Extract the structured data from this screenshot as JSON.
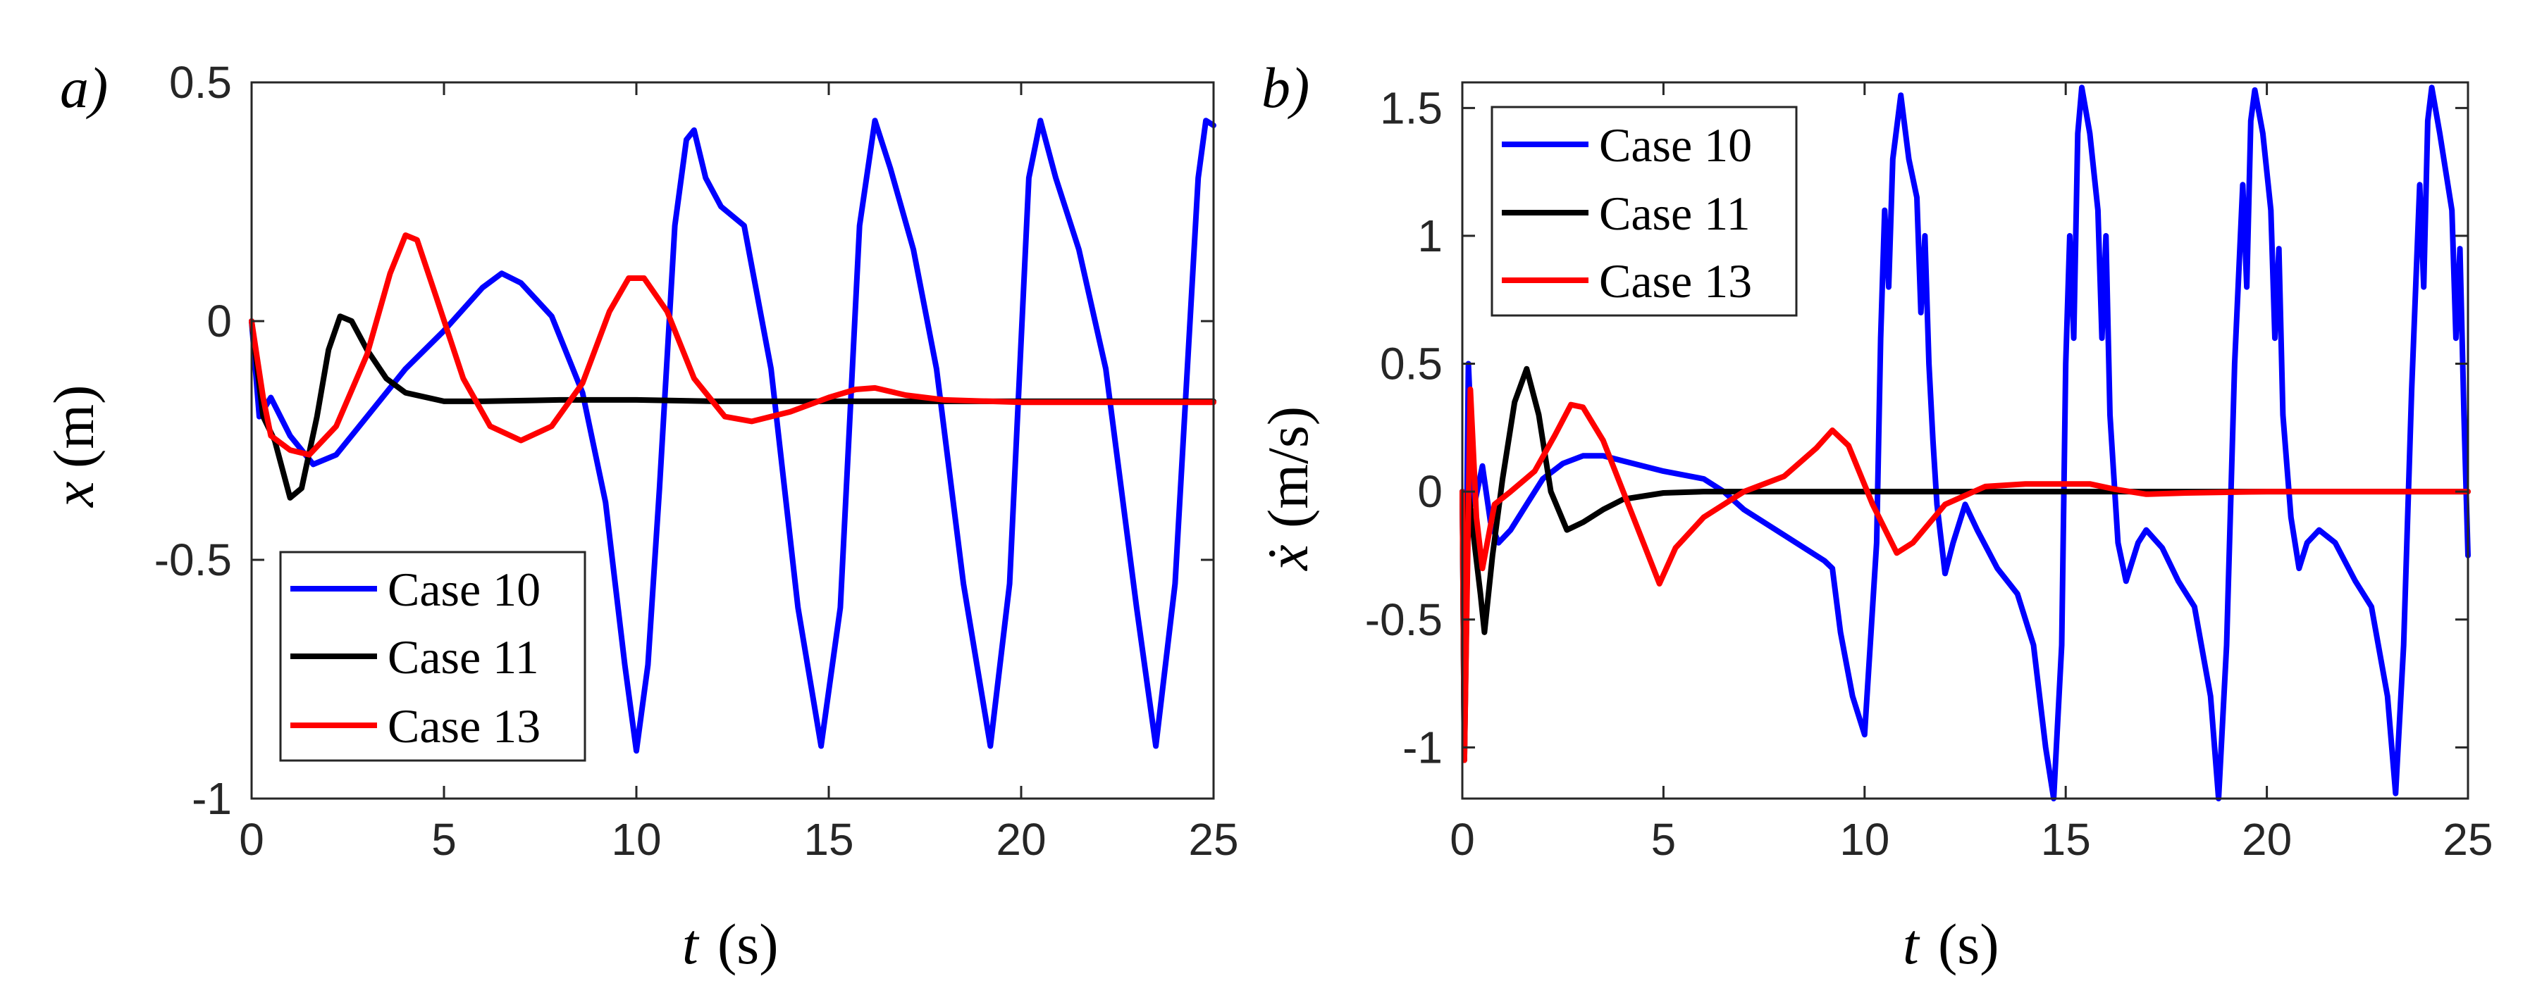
{
  "chart_data": [
    {
      "type": "line",
      "panel_label": "a)",
      "xlabel": "t",
      "xlabel_unit": "(s)",
      "ylabel": "x",
      "ylabel_unit": "(m)",
      "xlim": [
        0,
        25
      ],
      "ylim": [
        -1,
        0.5
      ],
      "xticks": [
        "0",
        "5",
        "10",
        "15",
        "20",
        "25"
      ],
      "yticks": [
        "0.5",
        "0",
        "-0.5",
        "-1"
      ],
      "legend": {
        "position": "bottom-left",
        "entries": [
          "Case 10",
          "Case 11",
          "Case 13"
        ]
      },
      "series": [
        {
          "name": "Case 10",
          "color": "#0000ff",
          "points": [
            [
              0,
              0
            ],
            [
              0.2,
              -0.2
            ],
            [
              0.5,
              -0.16
            ],
            [
              1,
              -0.24
            ],
            [
              1.6,
              -0.3
            ],
            [
              2.2,
              -0.28
            ],
            [
              3,
              -0.2
            ],
            [
              4,
              -0.1
            ],
            [
              5,
              -0.02
            ],
            [
              6,
              0.07
            ],
            [
              6.5,
              0.1
            ],
            [
              7,
              0.08
            ],
            [
              7.8,
              0.01
            ],
            [
              8.6,
              -0.15
            ],
            [
              9.2,
              -0.38
            ],
            [
              9.7,
              -0.72
            ],
            [
              10,
              -0.9
            ],
            [
              10.3,
              -0.72
            ],
            [
              10.6,
              -0.35
            ],
            [
              11,
              0.2
            ],
            [
              11.3,
              0.38
            ],
            [
              11.5,
              0.4
            ],
            [
              11.8,
              0.3
            ],
            [
              12.2,
              0.24
            ],
            [
              12.8,
              0.2
            ],
            [
              13.5,
              -0.1
            ],
            [
              14.2,
              -0.6
            ],
            [
              14.8,
              -0.89
            ],
            [
              15.3,
              -0.6
            ],
            [
              15.8,
              0.2
            ],
            [
              16.2,
              0.42
            ],
            [
              16.6,
              0.32
            ],
            [
              17.2,
              0.15
            ],
            [
              17.8,
              -0.1
            ],
            [
              18.5,
              -0.55
            ],
            [
              19.2,
              -0.89
            ],
            [
              19.7,
              -0.55
            ],
            [
              20.2,
              0.3
            ],
            [
              20.5,
              0.42
            ],
            [
              20.9,
              0.3
            ],
            [
              21.5,
              0.15
            ],
            [
              22.2,
              -0.1
            ],
            [
              23,
              -0.6
            ],
            [
              23.5,
              -0.89
            ],
            [
              24,
              -0.55
            ],
            [
              24.6,
              0.3
            ],
            [
              24.8,
              0.42
            ],
            [
              25,
              0.41
            ]
          ]
        },
        {
          "name": "Case 11",
          "color": "#000000",
          "points": [
            [
              0,
              0
            ],
            [
              0.3,
              -0.2
            ],
            [
              0.6,
              -0.25
            ],
            [
              1,
              -0.37
            ],
            [
              1.3,
              -0.35
            ],
            [
              1.7,
              -0.2
            ],
            [
              2,
              -0.06
            ],
            [
              2.3,
              0.01
            ],
            [
              2.6,
              0
            ],
            [
              3,
              -0.06
            ],
            [
              3.5,
              -0.12
            ],
            [
              4,
              -0.15
            ],
            [
              5,
              -0.168
            ],
            [
              6,
              -0.168
            ],
            [
              8,
              -0.165
            ],
            [
              10,
              -0.165
            ],
            [
              12,
              -0.168
            ],
            [
              15,
              -0.168
            ],
            [
              20,
              -0.168
            ],
            [
              25,
              -0.168
            ]
          ]
        },
        {
          "name": "Case 13",
          "color": "#ff0000",
          "points": [
            [
              0,
              0
            ],
            [
              0.3,
              -0.16
            ],
            [
              0.5,
              -0.24
            ],
            [
              1,
              -0.27
            ],
            [
              1.5,
              -0.28
            ],
            [
              2.2,
              -0.22
            ],
            [
              3,
              -0.07
            ],
            [
              3.6,
              0.1
            ],
            [
              4,
              0.18
            ],
            [
              4.3,
              0.17
            ],
            [
              4.8,
              0.05
            ],
            [
              5.5,
              -0.12
            ],
            [
              6.2,
              -0.22
            ],
            [
              7,
              -0.25
            ],
            [
              7.8,
              -0.22
            ],
            [
              8.6,
              -0.13
            ],
            [
              9.3,
              0.02
            ],
            [
              9.8,
              0.09
            ],
            [
              10.2,
              0.09
            ],
            [
              10.8,
              0.02
            ],
            [
              11.5,
              -0.12
            ],
            [
              12.3,
              -0.2
            ],
            [
              13,
              -0.21
            ],
            [
              14,
              -0.19
            ],
            [
              15,
              -0.16
            ],
            [
              15.7,
              -0.143
            ],
            [
              16.2,
              -0.14
            ],
            [
              17,
              -0.155
            ],
            [
              18,
              -0.165
            ],
            [
              20,
              -0.17
            ],
            [
              25,
              -0.17
            ]
          ]
        }
      ]
    },
    {
      "type": "line",
      "panel_label": "b)",
      "xlabel": "t",
      "xlabel_unit": "(s)",
      "ylabel": "ẋ",
      "ylabel_unit": "(m/s)",
      "xlim": [
        0,
        25
      ],
      "ylim": [
        -1.2,
        1.6
      ],
      "xticks": [
        "0",
        "5",
        "10",
        "15",
        "20",
        "25"
      ],
      "yticks": [
        "1.5",
        "1",
        "0.5",
        "0",
        "-0.5",
        "-1"
      ],
      "legend": {
        "position": "top-left",
        "entries": [
          "Case 10",
          "Case 11",
          "Case 13"
        ]
      },
      "series": [
        {
          "name": "Case 10",
          "color": "#0000ff",
          "points": [
            [
              0,
              0
            ],
            [
              0.05,
              -1.0
            ],
            [
              0.15,
              0.5
            ],
            [
              0.3,
              -0.05
            ],
            [
              0.5,
              0.1
            ],
            [
              0.7,
              -0.12
            ],
            [
              0.9,
              -0.2
            ],
            [
              1.2,
              -0.15
            ],
            [
              1.6,
              -0.05
            ],
            [
              2,
              0.05
            ],
            [
              2.5,
              0.11
            ],
            [
              3,
              0.14
            ],
            [
              3.5,
              0.14
            ],
            [
              4,
              0.12
            ],
            [
              5,
              0.08
            ],
            [
              6,
              0.05
            ],
            [
              6.5,
              0
            ],
            [
              7,
              -0.07
            ],
            [
              7.5,
              -0.12
            ],
            [
              8,
              -0.17
            ],
            [
              8.5,
              -0.22
            ],
            [
              9,
              -0.27
            ],
            [
              9.2,
              -0.3
            ],
            [
              9.4,
              -0.55
            ],
            [
              9.7,
              -0.8
            ],
            [
              10,
              -0.95
            ],
            [
              10.3,
              -0.2
            ],
            [
              10.4,
              0.6
            ],
            [
              10.5,
              1.1
            ],
            [
              10.6,
              0.8
            ],
            [
              10.7,
              1.3
            ],
            [
              10.9,
              1.55
            ],
            [
              11.1,
              1.3
            ],
            [
              11.3,
              1.15
            ],
            [
              11.4,
              0.7
            ],
            [
              11.5,
              1.0
            ],
            [
              11.6,
              0.5
            ],
            [
              11.7,
              0.2
            ],
            [
              11.8,
              -0.05
            ],
            [
              12,
              -0.32
            ],
            [
              12.2,
              -0.2
            ],
            [
              12.5,
              -0.05
            ],
            [
              12.8,
              -0.15
            ],
            [
              13.3,
              -0.3
            ],
            [
              13.8,
              -0.4
            ],
            [
              14.2,
              -0.6
            ],
            [
              14.5,
              -1.0
            ],
            [
              14.7,
              -1.2
            ],
            [
              14.9,
              -0.6
            ],
            [
              15,
              0.5
            ],
            [
              15.1,
              1.0
            ],
            [
              15.2,
              0.6
            ],
            [
              15.3,
              1.4
            ],
            [
              15.4,
              1.58
            ],
            [
              15.6,
              1.4
            ],
            [
              15.8,
              1.1
            ],
            [
              15.9,
              0.6
            ],
            [
              16,
              1.0
            ],
            [
              16.1,
              0.3
            ],
            [
              16.3,
              -0.2
            ],
            [
              16.5,
              -0.35
            ],
            [
              16.8,
              -0.2
            ],
            [
              17,
              -0.15
            ],
            [
              17.4,
              -0.22
            ],
            [
              17.8,
              -0.35
            ],
            [
              18.2,
              -0.45
            ],
            [
              18.6,
              -0.8
            ],
            [
              18.8,
              -1.2
            ],
            [
              19,
              -0.6
            ],
            [
              19.2,
              0.5
            ],
            [
              19.4,
              1.2
            ],
            [
              19.5,
              0.8
            ],
            [
              19.6,
              1.45
            ],
            [
              19.7,
              1.57
            ],
            [
              19.9,
              1.4
            ],
            [
              20.1,
              1.1
            ],
            [
              20.2,
              0.6
            ],
            [
              20.3,
              0.95
            ],
            [
              20.4,
              0.3
            ],
            [
              20.6,
              -0.1
            ],
            [
              20.8,
              -0.3
            ],
            [
              21,
              -0.2
            ],
            [
              21.3,
              -0.15
            ],
            [
              21.7,
              -0.2
            ],
            [
              22.2,
              -0.35
            ],
            [
              22.6,
              -0.45
            ],
            [
              23,
              -0.8
            ],
            [
              23.2,
              -1.18
            ],
            [
              23.4,
              -0.6
            ],
            [
              23.6,
              0.4
            ],
            [
              23.8,
              1.2
            ],
            [
              23.9,
              0.8
            ],
            [
              24,
              1.45
            ],
            [
              24.1,
              1.58
            ],
            [
              24.3,
              1.4
            ],
            [
              24.6,
              1.1
            ],
            [
              24.7,
              0.6
            ],
            [
              24.8,
              0.95
            ],
            [
              24.9,
              0.3
            ],
            [
              25,
              -0.25
            ]
          ]
        },
        {
          "name": "Case 11",
          "color": "#000000",
          "points": [
            [
              0,
              0
            ],
            [
              0.05,
              -1.05
            ],
            [
              0.15,
              0.0
            ],
            [
              0.3,
              -0.2
            ],
            [
              0.45,
              -0.4
            ],
            [
              0.55,
              -0.55
            ],
            [
              0.75,
              -0.25
            ],
            [
              1,
              0.05
            ],
            [
              1.3,
              0.35
            ],
            [
              1.6,
              0.48
            ],
            [
              1.9,
              0.3
            ],
            [
              2.2,
              0.0
            ],
            [
              2.6,
              -0.15
            ],
            [
              3,
              -0.12
            ],
            [
              3.5,
              -0.07
            ],
            [
              4,
              -0.03
            ],
            [
              5,
              -0.005
            ],
            [
              6,
              0.0
            ],
            [
              8,
              0.0
            ],
            [
              10,
              0.0
            ],
            [
              15,
              0.0
            ],
            [
              20,
              0.0
            ],
            [
              25,
              0.0
            ]
          ]
        },
        {
          "name": "Case 13",
          "color": "#ff0000",
          "points": [
            [
              0,
              0
            ],
            [
              0.05,
              -1.05
            ],
            [
              0.2,
              0.4
            ],
            [
              0.35,
              -0.1
            ],
            [
              0.5,
              -0.3
            ],
            [
              0.8,
              -0.05
            ],
            [
              1.2,
              0.0
            ],
            [
              1.8,
              0.08
            ],
            [
              2.3,
              0.22
            ],
            [
              2.7,
              0.34
            ],
            [
              3,
              0.33
            ],
            [
              3.5,
              0.2
            ],
            [
              4,
              0.0
            ],
            [
              4.5,
              -0.2
            ],
            [
              4.9,
              -0.36
            ],
            [
              5.3,
              -0.22
            ],
            [
              6,
              -0.1
            ],
            [
              7,
              0.0
            ],
            [
              8,
              0.06
            ],
            [
              8.8,
              0.17
            ],
            [
              9.2,
              0.24
            ],
            [
              9.6,
              0.18
            ],
            [
              10.2,
              -0.05
            ],
            [
              10.8,
              -0.24
            ],
            [
              11.2,
              -0.2
            ],
            [
              12,
              -0.05
            ],
            [
              13,
              0.02
            ],
            [
              14,
              0.03
            ],
            [
              15,
              0.03
            ],
            [
              15.6,
              0.03
            ],
            [
              16.2,
              0.01
            ],
            [
              17,
              -0.01
            ],
            [
              18,
              -0.005
            ],
            [
              20,
              0.0
            ],
            [
              25,
              0.0
            ]
          ]
        }
      ]
    }
  ]
}
